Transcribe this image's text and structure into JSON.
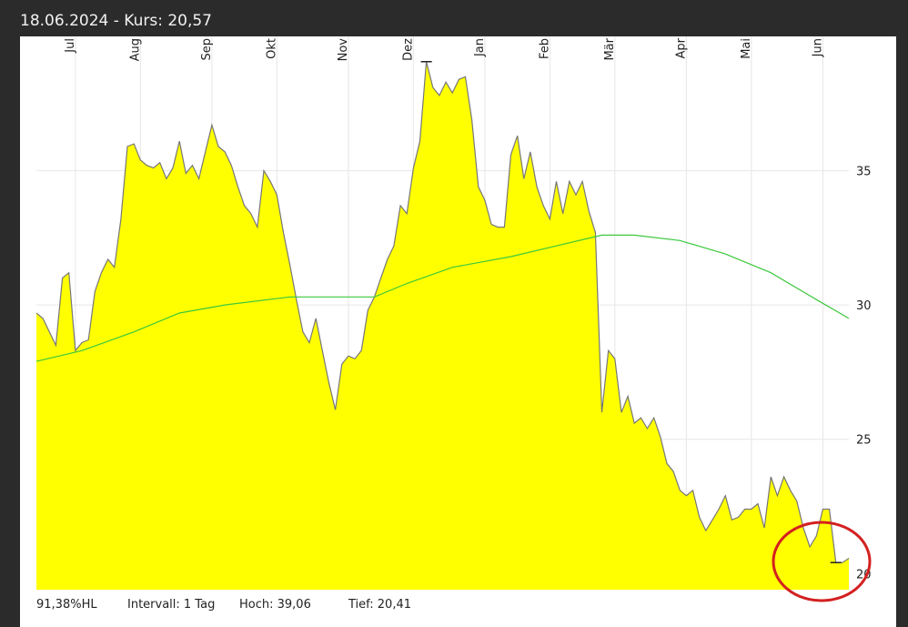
{
  "chart_data": {
    "type": "area",
    "header": "18.06.2024  -  Kurs: 20,57",
    "footer": [
      "91,38%HL",
      "Intervall: 1 Tag",
      "Hoch: 39,06",
      "Tief: 20,41"
    ],
    "xlim": [
      0,
      125
    ],
    "xticks": [
      {
        "value": 6,
        "label": "Jul"
      },
      {
        "value": 16,
        "label": "Aug"
      },
      {
        "value": 27,
        "label": "Sep"
      },
      {
        "value": 37,
        "label": "Okt"
      },
      {
        "value": 48,
        "label": "Nov"
      },
      {
        "value": 58,
        "label": "Dez"
      },
      {
        "value": 69,
        "label": "Jan"
      },
      {
        "value": 79,
        "label": "Feb"
      },
      {
        "value": 89,
        "label": "Mär"
      },
      {
        "value": 100,
        "label": "Apr"
      },
      {
        "value": 110,
        "label": "Mai"
      },
      {
        "value": 121,
        "label": "Jun"
      }
    ],
    "ylim": [
      19.4,
      40
    ],
    "yticks": [
      20,
      25,
      30,
      35
    ],
    "grid": true,
    "series": [
      {
        "color": "#ffff00",
        "line_color": "#777777",
        "values": [
          29.7,
          29.5,
          29.0,
          28.5,
          31.0,
          31.2,
          28.3,
          28.6,
          28.7,
          30.5,
          31.2,
          31.7,
          31.4,
          33.2,
          35.9,
          36.0,
          35.4,
          35.2,
          35.1,
          35.3,
          34.7,
          35.1,
          36.1,
          34.9,
          35.2,
          34.7,
          35.7,
          36.7,
          35.9,
          35.7,
          35.2,
          34.4,
          33.7,
          33.4,
          32.9,
          35.0,
          34.6,
          34.1,
          32.7,
          31.5,
          30.2,
          29.0,
          28.6,
          29.5,
          28.3,
          27.1,
          26.1,
          27.8,
          28.1,
          28.0,
          28.3,
          29.8,
          30.3,
          31.0,
          31.7,
          32.2,
          33.7,
          33.4,
          35.1,
          36.1,
          39.06,
          38.1,
          37.8,
          38.3,
          37.9,
          38.4,
          38.5,
          36.9,
          34.4,
          33.9,
          33.0,
          32.9,
          32.9,
          35.6,
          36.3,
          34.7,
          35.7,
          34.4,
          33.7,
          33.2,
          34.6,
          33.4,
          34.6,
          34.1,
          34.6,
          33.5,
          32.7,
          26.0,
          28.3,
          28.0,
          26.0,
          26.6,
          25.6,
          25.8,
          25.4,
          25.8,
          25.1,
          24.1,
          23.8,
          23.1,
          22.9,
          23.1,
          22.1,
          21.6,
          22.0,
          22.4,
          22.9,
          22.0,
          22.1,
          22.4,
          22.4,
          22.6,
          21.7,
          23.6,
          22.9,
          23.6,
          23.1,
          22.7,
          21.7,
          21.0,
          21.4,
          22.4,
          22.4,
          20.41,
          20.41,
          20.57
        ]
      },
      {
        "color": "#3cc83c",
        "x": [
          0,
          7,
          15,
          22,
          29,
          39,
          46,
          52,
          57,
          64,
          73,
          80,
          87,
          92,
          99,
          106,
          113,
          120,
          125
        ],
        "values": [
          27.9,
          28.3,
          29.0,
          29.7,
          30.0,
          30.3,
          30.3,
          30.3,
          30.8,
          31.4,
          31.8,
          32.2,
          32.6,
          32.6,
          32.4,
          31.9,
          31.2,
          30.2,
          29.5
        ]
      }
    ]
  }
}
